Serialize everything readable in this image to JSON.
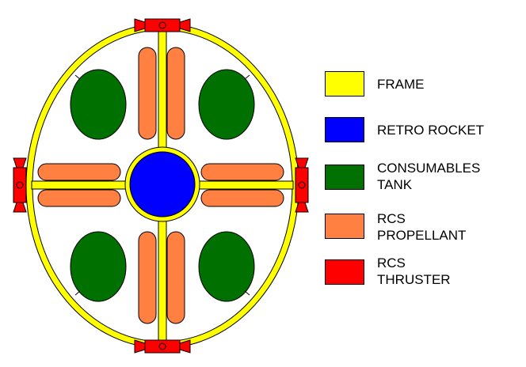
{
  "colors": {
    "frame": "#ffff00",
    "retro_rocket": "#0000ff",
    "consumables_tank": "#007000",
    "rcs_propellant": "#ff8040",
    "rcs_thruster": "#ff0000",
    "outline": "#000000",
    "background": "#ffffff"
  },
  "legend": [
    {
      "id": "frame",
      "label": "FRAME",
      "color": "#ffff00"
    },
    {
      "id": "retro-rocket",
      "label": "RETRO ROCKET",
      "color": "#0000ff"
    },
    {
      "id": "consumables-tank",
      "label": "CONSUMABLES\nTANK",
      "color": "#007000"
    },
    {
      "id": "rcs-propellant",
      "label": "RCS\nPROPELLANT",
      "color": "#ff8040"
    },
    {
      "id": "rcs-thruster",
      "label": "RCS\nTHRUSTER",
      "color": "#ff0000"
    }
  ],
  "components": {
    "consumables_tank_count": 4,
    "rcs_propellant_tank_count": 8,
    "rcs_thruster_count": 4,
    "retro_rocket_count": 1
  }
}
